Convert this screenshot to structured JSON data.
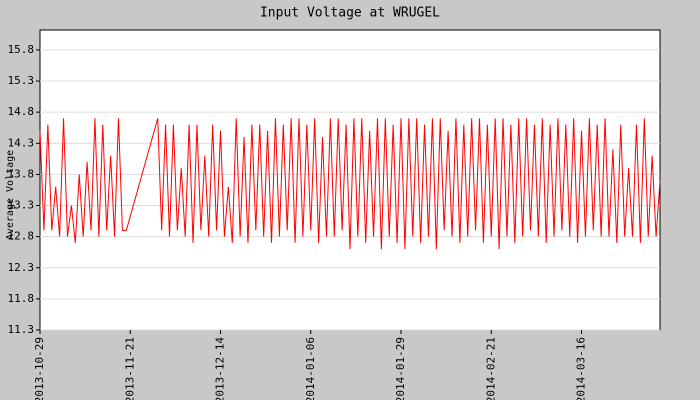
{
  "chart_data": {
    "type": "line",
    "title": "Input Voltage at WRUGEL",
    "y_label": "Average Voltage",
    "color": "#ff0000",
    "grid": true,
    "ylim": [
      11.3,
      16.12
    ],
    "yticks": [
      11.3,
      11.8,
      12.3,
      12.8,
      13.3,
      13.8,
      14.3,
      14.8,
      15.3,
      15.8
    ],
    "xlim": [
      "2013-10-29",
      "2014-04-05"
    ],
    "xticks": [
      "2013-10-29",
      "2013-11-21",
      "2013-12-14",
      "2014-01-06",
      "2014-01-29",
      "2014-02-21",
      "2014-03-16"
    ],
    "x": [
      "2013-10-29",
      "2013-10-30",
      "2013-10-31",
      "2013-11-01",
      "2013-11-02",
      "2013-11-03",
      "2013-11-04",
      "2013-11-05",
      "2013-11-06",
      "2013-11-07",
      "2013-11-08",
      "2013-11-09",
      "2013-11-10",
      "2013-11-11",
      "2013-11-12",
      "2013-11-13",
      "2013-11-14",
      "2013-11-15",
      "2013-11-16",
      "2013-11-17",
      "2013-11-18",
      "2013-11-19",
      "2013-11-20",
      "2013-11-28",
      "2013-11-29",
      "2013-11-30",
      "2013-12-01",
      "2013-12-02",
      "2013-12-03",
      "2013-12-04",
      "2013-12-05",
      "2013-12-06",
      "2013-12-07",
      "2013-12-08",
      "2013-12-09",
      "2013-12-10",
      "2013-12-11",
      "2013-12-12",
      "2013-12-13",
      "2013-12-14",
      "2013-12-15",
      "2013-12-16",
      "2013-12-17",
      "2013-12-18",
      "2013-12-19",
      "2013-12-20",
      "2013-12-21",
      "2013-12-22",
      "2013-12-23",
      "2013-12-24",
      "2013-12-25",
      "2013-12-26",
      "2013-12-27",
      "2013-12-28",
      "2013-12-29",
      "2013-12-30",
      "2013-12-31",
      "2014-01-01",
      "2014-01-02",
      "2014-01-03",
      "2014-01-04",
      "2014-01-05",
      "2014-01-06",
      "2014-01-07",
      "2014-01-08",
      "2014-01-09",
      "2014-01-10",
      "2014-01-11",
      "2014-01-12",
      "2014-01-13",
      "2014-01-14",
      "2014-01-15",
      "2014-01-16",
      "2014-01-17",
      "2014-01-18",
      "2014-01-19",
      "2014-01-20",
      "2014-01-21",
      "2014-01-22",
      "2014-01-23",
      "2014-01-24",
      "2014-01-25",
      "2014-01-26",
      "2014-01-27",
      "2014-01-28",
      "2014-01-29",
      "2014-01-30",
      "2014-01-31",
      "2014-02-01",
      "2014-02-02",
      "2014-02-03",
      "2014-02-04",
      "2014-02-05",
      "2014-02-06",
      "2014-02-07",
      "2014-02-08",
      "2014-02-09",
      "2014-02-10",
      "2014-02-11",
      "2014-02-12",
      "2014-02-13",
      "2014-02-14",
      "2014-02-15",
      "2014-02-16",
      "2014-02-17",
      "2014-02-18",
      "2014-02-19",
      "2014-02-20",
      "2014-02-21",
      "2014-02-22",
      "2014-02-23",
      "2014-02-24",
      "2014-02-25",
      "2014-02-26",
      "2014-02-27",
      "2014-02-28",
      "2014-03-01",
      "2014-03-02",
      "2014-03-03",
      "2014-03-04",
      "2014-03-05",
      "2014-03-06",
      "2014-03-07",
      "2014-03-08",
      "2014-03-09",
      "2014-03-10",
      "2014-03-11",
      "2014-03-12",
      "2014-03-13",
      "2014-03-14",
      "2014-03-15",
      "2014-03-16",
      "2014-03-17",
      "2014-03-18",
      "2014-03-19",
      "2014-03-20",
      "2014-03-21",
      "2014-03-22",
      "2014-03-23",
      "2014-03-24",
      "2014-03-25",
      "2014-03-26",
      "2014-03-27",
      "2014-03-28",
      "2014-03-29",
      "2014-03-30",
      "2014-03-31",
      "2014-04-01",
      "2014-04-02",
      "2014-04-03",
      "2014-04-04",
      "2014-04-05"
    ],
    "values": [
      14.5,
      12.9,
      14.6,
      12.9,
      13.6,
      12.8,
      14.7,
      12.8,
      13.3,
      12.7,
      13.8,
      12.8,
      14.0,
      12.9,
      14.7,
      12.8,
      14.6,
      12.9,
      14.1,
      12.8,
      14.7,
      12.9,
      12.9,
      14.7,
      12.9,
      14.6,
      12.8,
      14.6,
      12.9,
      13.9,
      12.8,
      14.6,
      12.7,
      14.6,
      12.9,
      14.1,
      12.8,
      14.6,
      12.9,
      14.5,
      12.8,
      13.6,
      12.7,
      14.7,
      12.8,
      14.4,
      12.7,
      14.6,
      12.9,
      14.6,
      12.8,
      14.5,
      12.7,
      14.7,
      12.8,
      14.6,
      12.9,
      14.7,
      12.7,
      14.7,
      12.8,
      14.6,
      12.9,
      14.7,
      12.7,
      14.4,
      12.8,
      14.7,
      12.8,
      14.7,
      12.9,
      14.6,
      12.6,
      14.7,
      12.8,
      14.7,
      12.7,
      14.5,
      12.8,
      14.7,
      12.6,
      14.7,
      12.8,
      14.6,
      12.7,
      14.7,
      12.6,
      14.7,
      12.8,
      14.7,
      12.7,
      14.6,
      12.8,
      14.7,
      12.6,
      14.7,
      12.9,
      14.5,
      12.8,
      14.7,
      12.7,
      14.6,
      12.8,
      14.7,
      12.9,
      14.7,
      12.7,
      14.6,
      12.8,
      14.7,
      12.6,
      14.7,
      12.8,
      14.6,
      12.7,
      14.7,
      12.8,
      14.7,
      12.9,
      14.6,
      12.8,
      14.7,
      12.7,
      14.6,
      12.8,
      14.7,
      12.9,
      14.6,
      12.8,
      14.7,
      12.7,
      14.5,
      12.8,
      14.7,
      12.9,
      14.6,
      12.8,
      14.7,
      12.8,
      14.2,
      12.7,
      14.6,
      12.8,
      13.9,
      12.8,
      14.6,
      12.7,
      14.7,
      12.8,
      14.1,
      12.8,
      13.7
    ]
  }
}
